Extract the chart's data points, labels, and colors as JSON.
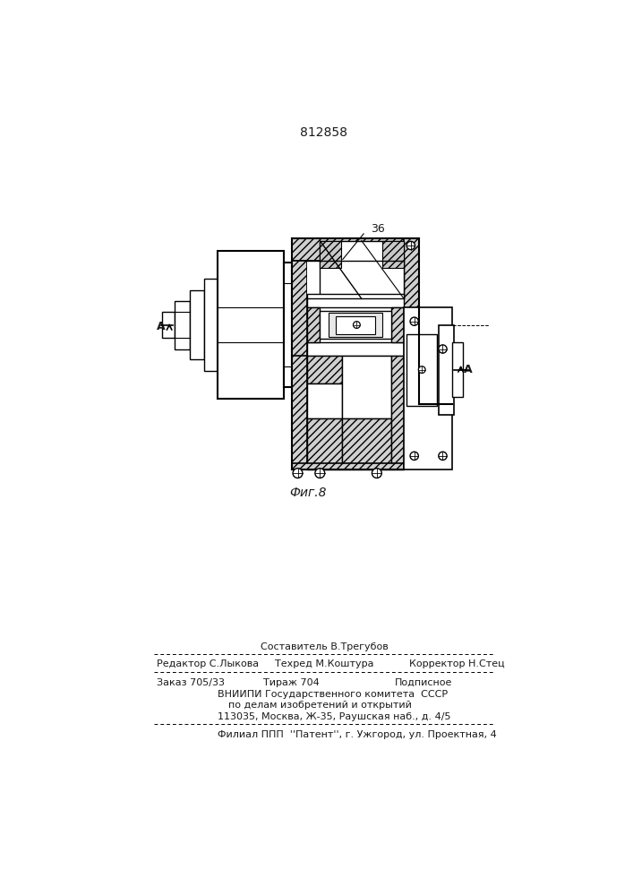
{
  "patent_number": "812858",
  "fig_label": "Фиг.8",
  "footer": {
    "line1_center": "Составитель В.Трегубов",
    "line2_left": "Редактор С.Лыкова",
    "line2_center": "Техред М.Коштура",
    "line2_right": "Корректор Н.Стец",
    "line3_left": "Заказ 705/33",
    "line3_center": "Тираж 704",
    "line3_right": "Подписное",
    "line4": "ВНИИПИ Государственного комитета  СССР",
    "line5": "по делам изобретений и открытий",
    "line6": "113035, Москва, Ж-35, Раушская наб., д. 4/5",
    "line7": "Филиал ППП  ''Патент'', г. Ужгород, ул. Проектная, 4"
  },
  "bg_color": "#ffffff",
  "text_color": "#1a1a1a"
}
